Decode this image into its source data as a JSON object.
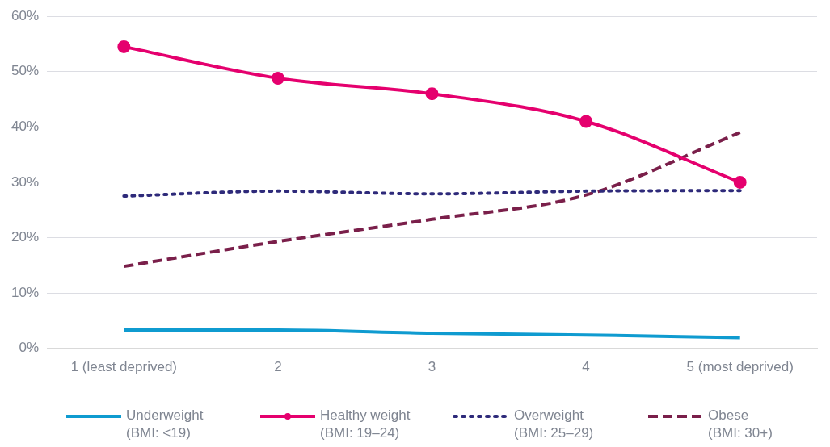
{
  "chart_data": {
    "type": "line",
    "categories": [
      "1 (least deprived)",
      "2",
      "3",
      "4",
      "5 (most deprived)"
    ],
    "series": [
      {
        "name": "Underweight\n(BMI: <19)",
        "color": "#0f9bd0",
        "values": [
          3.3,
          3.3,
          2.7,
          2.4,
          1.9
        ],
        "marker": "none",
        "line_style": "solid"
      },
      {
        "name": "Healthy weight\n(BMI: 19–24)",
        "color": "#e5006e",
        "values": [
          54.5,
          48.8,
          46,
          41,
          30
        ],
        "marker": "circle",
        "line_style": "solid"
      },
      {
        "name": "Overweight\n(BMI: 25–29)",
        "color": "#2e2a7a",
        "values": [
          27.5,
          28.4,
          27.9,
          28.4,
          28.5
        ],
        "marker": "none",
        "line_style": "dotted"
      },
      {
        "name": "Obese\n(BMI: 30+)",
        "color": "#7a1f4a",
        "values": [
          14.8,
          19.3,
          23.3,
          27.7,
          39
        ],
        "marker": "none",
        "line_style": "dashed"
      }
    ],
    "ylim": [
      0,
      60
    ],
    "yticks": [
      {
        "value": 0,
        "label": "0%"
      },
      {
        "value": 10,
        "label": "10%"
      },
      {
        "value": 20,
        "label": "20%"
      },
      {
        "value": 30,
        "label": "30%"
      },
      {
        "value": 40,
        "label": "40%"
      },
      {
        "value": 50,
        "label": "50%"
      },
      {
        "value": 60,
        "label": "60%"
      }
    ],
    "grid": "y",
    "legend": "bottom"
  }
}
